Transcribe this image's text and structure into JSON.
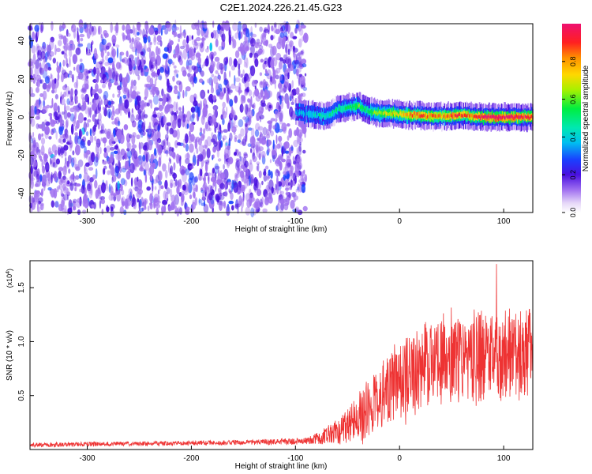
{
  "title": "C2E1.2024.226.21.45.G23",
  "chart_data": [
    {
      "type": "heatmap",
      "xlabel": "Height of straight line (km)",
      "ylabel": "Frequency (Hz)",
      "xlim": [
        -355,
        128
      ],
      "ylim": [
        -50,
        49
      ],
      "xticks": [
        -300,
        -200,
        -100,
        0,
        100
      ],
      "xtick_labels": [
        "-300",
        "-200",
        "-100",
        "0",
        "100"
      ],
      "yticks": [
        -40,
        -20,
        0,
        20,
        40
      ],
      "ytick_labels": [
        "-40",
        "-20",
        "0",
        "20",
        "40"
      ],
      "noise_region_x": [
        -355,
        -90
      ],
      "noise_amplitude_range": [
        0.0,
        0.25
      ],
      "signal_band": {
        "description": "narrow band near 0 Hz from about -100 km onward",
        "x": [
          -100,
          -90,
          -80,
          -70,
          -60,
          -50,
          -40,
          -30,
          -20,
          -10,
          0,
          10,
          20,
          30,
          40,
          50,
          60,
          70,
          80,
          90,
          100,
          110,
          120,
          128
        ],
        "center_hz": [
          2.5,
          2.0,
          1.0,
          0.5,
          4.0,
          5.0,
          6.0,
          3.0,
          2.0,
          2.0,
          1.5,
          1.0,
          1.0,
          0.5,
          0.5,
          0.5,
          1.0,
          0.5,
          0.0,
          0.0,
          0.0,
          0.0,
          0.0,
          0.0
        ],
        "peak_amplitude": [
          0.3,
          0.35,
          0.4,
          0.4,
          0.45,
          0.5,
          0.55,
          0.5,
          0.6,
          0.65,
          0.7,
          0.8,
          0.85,
          0.8,
          0.8,
          0.85,
          0.85,
          0.8,
          0.95,
          0.95,
          0.95,
          0.95,
          0.9,
          0.9
        ]
      },
      "colorbar": {
        "label": "Normalized spectral amplitude",
        "ticks": [
          0.0,
          0.2,
          0.4,
          0.6,
          0.8
        ],
        "tick_labels": [
          "0.0",
          "0.2",
          "0.4",
          "0.6",
          "0.8"
        ],
        "range": [
          0.0,
          1.0
        ]
      }
    },
    {
      "type": "line",
      "xlabel": "Height of straight line (km)",
      "ylabel": "SNR (10 * v/v)",
      "y_multiplier": "(x10",
      "y_multiplier_exp": "4",
      "y_multiplier_close": ")",
      "xlim": [
        -355,
        128
      ],
      "ylim": [
        0,
        1.75
      ],
      "xticks": [
        -300,
        -200,
        -100,
        0,
        100
      ],
      "xtick_labels": [
        "-300",
        "-200",
        "-100",
        "0",
        "100"
      ],
      "yticks": [
        0.5,
        1.0,
        1.5
      ],
      "ytick_labels": [
        "0.5",
        "1.0",
        "1.5"
      ],
      "series": [
        {
          "name": "SNR",
          "color": "#ee3333",
          "envelope_x": [
            -355,
            -300,
            -200,
            -120,
            -90,
            -80,
            -70,
            -60,
            -50,
            -40,
            -30,
            -20,
            -10,
            0,
            10,
            20,
            30,
            40,
            50,
            60,
            70,
            80,
            90,
            100,
            110,
            120,
            128
          ],
          "envelope_mean": [
            0.04,
            0.05,
            0.06,
            0.07,
            0.08,
            0.1,
            0.13,
            0.17,
            0.22,
            0.3,
            0.38,
            0.48,
            0.58,
            0.66,
            0.72,
            0.76,
            0.78,
            0.8,
            0.82,
            0.84,
            0.86,
            0.87,
            0.88,
            0.9,
            0.9,
            0.92,
            0.93
          ],
          "envelope_spread": [
            0.02,
            0.02,
            0.02,
            0.025,
            0.03,
            0.05,
            0.08,
            0.12,
            0.16,
            0.22,
            0.26,
            0.3,
            0.33,
            0.36,
            0.38,
            0.38,
            0.38,
            0.4,
            0.4,
            0.4,
            0.4,
            0.42,
            0.42,
            0.42,
            0.4,
            0.4,
            0.4
          ],
          "peak_x": 93,
          "peak_value": 1.72
        }
      ]
    }
  ],
  "colors": {
    "signal_line": "#ee3333",
    "noise_cloud": "#7a35e6",
    "axis": "#000000"
  }
}
